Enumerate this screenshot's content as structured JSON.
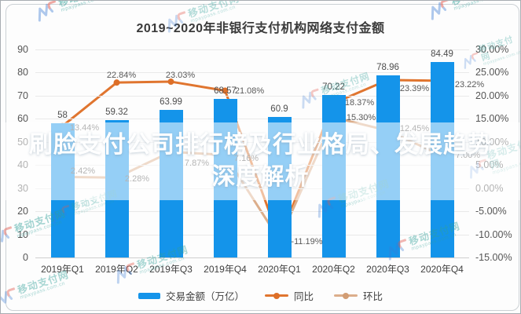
{
  "title": "2019~2020年非银行支付机构网络支付金额",
  "overlay": {
    "line1": "刷脸支付公司排行榜及行业格局、发展趋势",
    "line2": "深度解析"
  },
  "watermark": {
    "brand": "移动支付网",
    "domain": "mpaypass.com.cn",
    "logo": "mp-logo"
  },
  "legend": [
    {
      "label": "交易金额（万亿）",
      "type": "bar",
      "color": "#1494ea"
    },
    {
      "label": "同比",
      "type": "line",
      "color": "#e0752f",
      "marker_color": "#dd6f28"
    },
    {
      "label": "环比",
      "type": "line",
      "color": "#dcae8b",
      "marker_color": "#d29d74"
    }
  ],
  "colors": {
    "bar": "#1494ea",
    "yoy_line": "#e0752f",
    "qoq_line": "#dcae8b",
    "label_text": "#5a5a5a",
    "grid": "#e9e9e9",
    "watermark_teal": "#2fa099",
    "title_text": "#3a3a3a",
    "headline_text": "#ffffff",
    "band_bg": "rgba(255,255,255,0.55)"
  },
  "chart_data": {
    "type": "bar",
    "subtype": "bar+line combo",
    "title": "2019~2020年非银行支付机构网络支付金额",
    "categories": [
      "2019年Q1",
      "2019年Q2",
      "2019年Q3",
      "2019年Q4",
      "2020年Q1",
      "2020年Q2",
      "2020年Q3",
      "2020年Q4"
    ],
    "series": [
      {
        "id": "amount",
        "name": "交易金额（万亿）",
        "type": "bar",
        "axis": "left",
        "color": "#1494ea",
        "values": [
          58,
          59.32,
          63.99,
          68.57,
          60.9,
          70.22,
          78.96,
          84.49
        ],
        "labels": [
          "58",
          "59.32",
          "63.99",
          "68.57",
          "60.9",
          "70.22",
          "78.96",
          "84.49"
        ]
      },
      {
        "id": "yoy",
        "name": "同比",
        "type": "line",
        "axis": "right",
        "color": "#e0752f",
        "marker_color": "#dd6f28",
        "values": [
          13.44,
          22.84,
          23.03,
          21.08,
          -11.1,
          18.37,
          23.39,
          23.22
        ],
        "labels": [
          "13.44%",
          "22.84%",
          "23.03%",
          "21.08%",
          "",
          "18.37%",
          "23.39%",
          "23.22%"
        ],
        "label_offsets": [
          [
            28,
            2
          ],
          [
            6,
            -9
          ],
          [
            12,
            -8
          ],
          [
            31,
            0
          ],
          [
            0,
            0
          ],
          [
            33,
            0
          ],
          [
            34,
            11
          ],
          [
            35,
            5
          ]
        ]
      },
      {
        "id": "qoq",
        "name": "环比",
        "type": "line",
        "axis": "right",
        "color": "#dcae8b",
        "marker_color": "#d29d74",
        "values": [
          2.42,
          2.28,
          7.87,
          7.16,
          -11.19,
          15.3,
          12.45,
          7.0
        ],
        "labels": [
          "2.42%",
          "2.28%",
          "7.87%",
          "7.16%",
          "-11.19%",
          "15.30%",
          "12.45%",
          "7.00%"
        ],
        "label_offsets": [
          [
            26,
            -7
          ],
          [
            26,
            2
          ],
          [
            33,
            15
          ],
          [
            27,
            4
          ],
          [
            35,
            2
          ],
          [
            35,
            0
          ],
          [
            34,
            -2
          ],
          [
            33,
            0
          ]
        ]
      }
    ],
    "axes": {
      "left": {
        "min": 0,
        "max": 90,
        "step": 10,
        "ticks": [
          "0",
          "10",
          "20",
          "30",
          "40",
          "50",
          "60",
          "70",
          "80",
          "90"
        ]
      },
      "right": {
        "min": -15,
        "max": 30,
        "step": 5,
        "ticks": [
          "30.00%",
          "25.00%",
          "20.00%",
          "15.00%",
          "10.00%",
          "5.00%",
          "0.00%",
          "-5.00%",
          "-10.00%",
          "-15.00%"
        ]
      }
    },
    "grid": true,
    "legend_position": "bottom"
  }
}
